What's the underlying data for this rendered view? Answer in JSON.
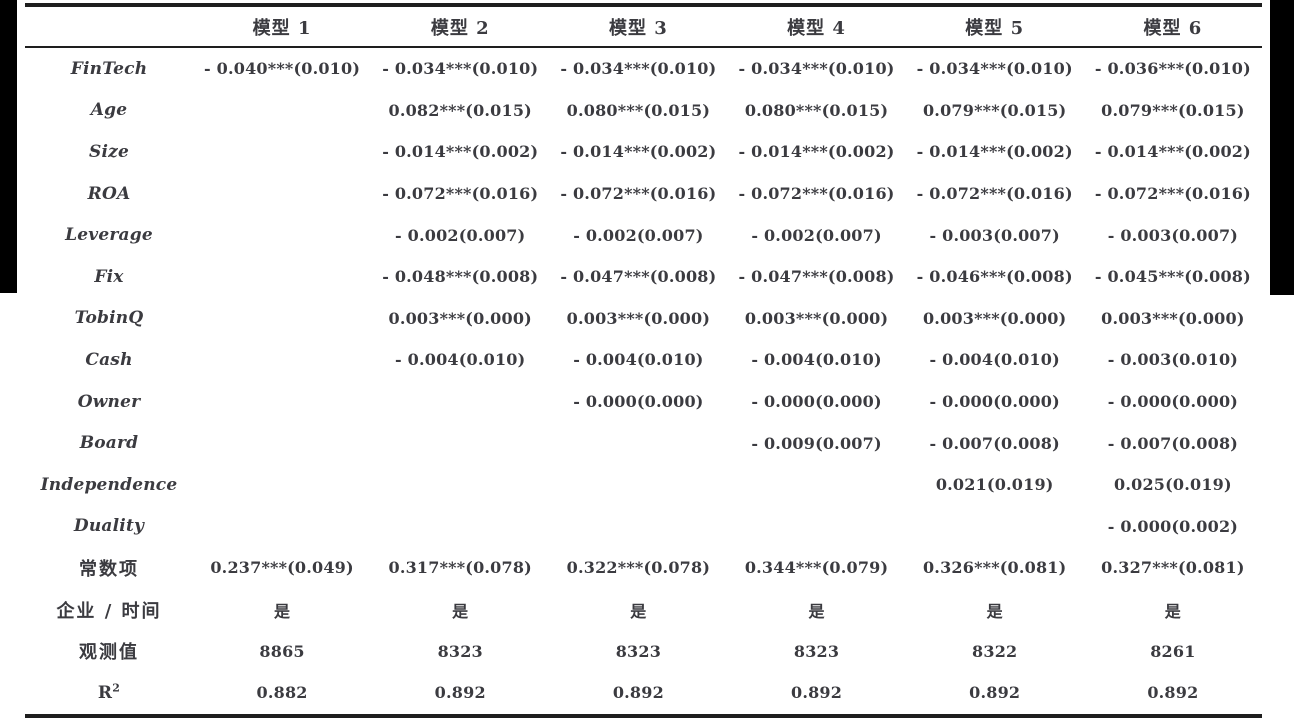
{
  "page": {
    "background_color": "#ffffff",
    "scan_artifact_color": "#000000",
    "text_color": "#3b3b40",
    "rule_color": "#1e1e1e"
  },
  "table": {
    "corner_label": "",
    "columns": [
      "模型 1",
      "模型 2",
      "模型 3",
      "模型 4",
      "模型 5",
      "模型 6"
    ],
    "rows": [
      {
        "label": "FinTech",
        "style": "latin",
        "values": [
          "- 0.040***(0.010)",
          "- 0.034***(0.010)",
          "- 0.034***(0.010)",
          "- 0.034***(0.010)",
          "- 0.034***(0.010)",
          "- 0.036***(0.010)"
        ]
      },
      {
        "label": "Age",
        "style": "latin",
        "values": [
          "",
          "0.082***(0.015)",
          "0.080***(0.015)",
          "0.080***(0.015)",
          "0.079***(0.015)",
          "0.079***(0.015)"
        ]
      },
      {
        "label": "Size",
        "style": "latin",
        "values": [
          "",
          "- 0.014***(0.002)",
          "- 0.014***(0.002)",
          "- 0.014***(0.002)",
          "- 0.014***(0.002)",
          "- 0.014***(0.002)"
        ]
      },
      {
        "label": "ROA",
        "style": "latin",
        "values": [
          "",
          "- 0.072***(0.016)",
          "- 0.072***(0.016)",
          "- 0.072***(0.016)",
          "- 0.072***(0.016)",
          "- 0.072***(0.016)"
        ]
      },
      {
        "label": "Leverage",
        "style": "latin",
        "values": [
          "",
          "- 0.002(0.007)",
          "- 0.002(0.007)",
          "- 0.002(0.007)",
          "- 0.003(0.007)",
          "- 0.003(0.007)"
        ]
      },
      {
        "label": "Fix",
        "style": "latin",
        "values": [
          "",
          "- 0.048***(0.008)",
          "- 0.047***(0.008)",
          "- 0.047***(0.008)",
          "- 0.046***(0.008)",
          "- 0.045***(0.008)"
        ]
      },
      {
        "label": "TobinQ",
        "style": "latin",
        "values": [
          "",
          "0.003***(0.000)",
          "0.003***(0.000)",
          "0.003***(0.000)",
          "0.003***(0.000)",
          "0.003***(0.000)"
        ]
      },
      {
        "label": "Cash",
        "style": "latin",
        "values": [
          "",
          "- 0.004(0.010)",
          "- 0.004(0.010)",
          "- 0.004(0.010)",
          "- 0.004(0.010)",
          "- 0.003(0.010)"
        ]
      },
      {
        "label": "Owner",
        "style": "latin",
        "values": [
          "",
          "",
          "- 0.000(0.000)",
          "- 0.000(0.000)",
          "- 0.000(0.000)",
          "- 0.000(0.000)"
        ]
      },
      {
        "label": "Board",
        "style": "latin",
        "values": [
          "",
          "",
          "",
          "- 0.009(0.007)",
          "- 0.007(0.008)",
          "- 0.007(0.008)"
        ]
      },
      {
        "label": "Independence",
        "style": "latin",
        "values": [
          "",
          "",
          "",
          "",
          "0.021(0.019)",
          "0.025(0.019)"
        ]
      },
      {
        "label": "Duality",
        "style": "latin",
        "values": [
          "",
          "",
          "",
          "",
          "",
          "- 0.000(0.002)"
        ]
      },
      {
        "label": "常数项",
        "style": "cjk",
        "values": [
          "0.237***(0.049)",
          "0.317***(0.078)",
          "0.322***(0.078)",
          "0.344***(0.079)",
          "0.326***(0.081)",
          "0.327***(0.081)"
        ]
      },
      {
        "label": "企业 / 时间",
        "style": "cjk",
        "values": [
          "是",
          "是",
          "是",
          "是",
          "是",
          "是"
        ]
      },
      {
        "label": "观测值",
        "style": "cjk",
        "values": [
          "8865",
          "8323",
          "8323",
          "8323",
          "8322",
          "8261"
        ]
      },
      {
        "label": "R",
        "superscript": "2",
        "style": "latin-upright",
        "values": [
          "0.882",
          "0.892",
          "0.892",
          "0.892",
          "0.892",
          "0.892"
        ]
      }
    ]
  }
}
